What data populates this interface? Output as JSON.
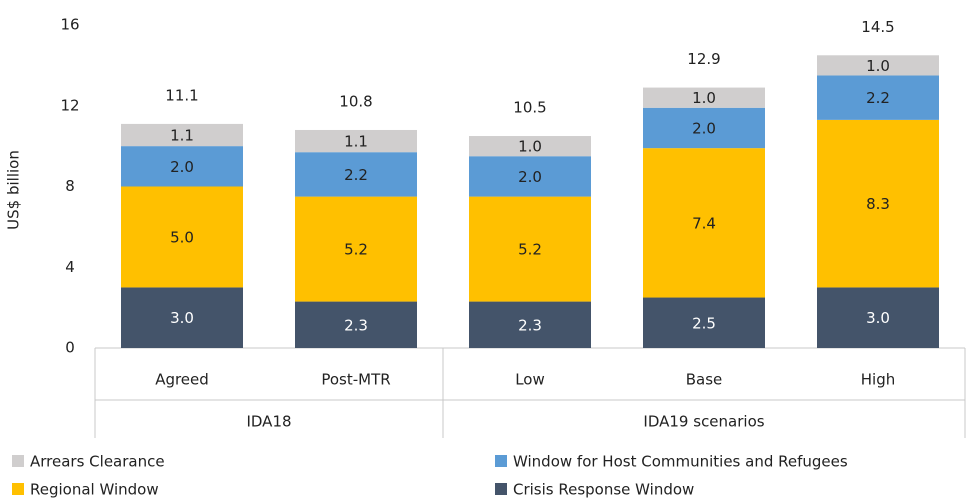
{
  "chart_data": {
    "type": "stacked_bar",
    "y_label": "US$ billion",
    "categories": [
      "Agreed",
      "Post-MTR",
      "Low",
      "Base",
      "High"
    ],
    "groups": [
      {
        "name": "IDA18",
        "count": 2
      },
      {
        "name": "IDA19 scenarios",
        "count": 3
      }
    ],
    "series": [
      {
        "name": "Arrears Clearance",
        "color": "#d0cece",
        "values": [
          1.1,
          1.1,
          1,
          1,
          1
        ],
        "value_labels": [
          "1.1",
          "1.1",
          "1.0",
          "1.0",
          "1.0"
        ]
      },
      {
        "name": "Window for Host Communities and Refugees",
        "color": "#5b9bd5",
        "values": [
          2,
          2.2,
          2,
          2,
          2.2
        ],
        "value_labels": [
          "2.0",
          "2.2",
          "2.0",
          "2.0",
          "2.2"
        ]
      },
      {
        "name": "Regional Window",
        "color": "#ffc000",
        "values": [
          5,
          5.2,
          5.2,
          7.4,
          8.3
        ],
        "value_labels": [
          "5.0",
          "5.2",
          "5.2",
          "7.4",
          "8.3"
        ]
      },
      {
        "name": "Crisis Response Window",
        "color": "#44546a",
        "values": [
          3,
          2.3,
          2.3,
          2.5,
          3
        ],
        "value_labels": [
          "3.0",
          "2.3",
          "2.3",
          "2.5",
          "3.0"
        ]
      }
    ],
    "totals": [
      11.1,
      10.8,
      10.5,
      12.9,
      14.5
    ],
    "ylim": [
      0,
      16
    ],
    "yticks": [
      0,
      4,
      8,
      12,
      16
    ],
    "grid": false,
    "legend": "bottom"
  }
}
